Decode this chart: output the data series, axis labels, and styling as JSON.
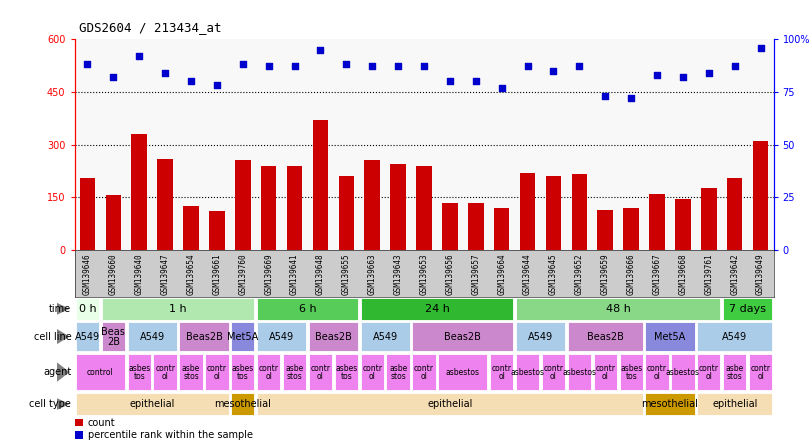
{
  "title": "GDS2604 / 213434_at",
  "samples": [
    "GSM139646",
    "GSM139660",
    "GSM139640",
    "GSM139647",
    "GSM139654",
    "GSM139661",
    "GSM139760",
    "GSM139669",
    "GSM139641",
    "GSM139648",
    "GSM139655",
    "GSM139663",
    "GSM139643",
    "GSM139653",
    "GSM139656",
    "GSM139657",
    "GSM139664",
    "GSM139644",
    "GSM139645",
    "GSM139652",
    "GSM139659",
    "GSM139666",
    "GSM139667",
    "GSM139668",
    "GSM139761",
    "GSM139642",
    "GSM139649"
  ],
  "counts": [
    205,
    155,
    330,
    260,
    125,
    110,
    255,
    240,
    240,
    370,
    210,
    255,
    245,
    240,
    135,
    135,
    120,
    220,
    210,
    215,
    115,
    120,
    160,
    145,
    175,
    205,
    310
  ],
  "percentiles": [
    88,
    82,
    92,
    84,
    80,
    78,
    88,
    87,
    87,
    95,
    88,
    87,
    87,
    87,
    80,
    80,
    77,
    87,
    85,
    87,
    73,
    72,
    83,
    82,
    84,
    87,
    96
  ],
  "bar_color": "#cc0000",
  "dot_color": "#0000cc",
  "time_segs": [
    {
      "text": "0 h",
      "start": 0,
      "end": 1,
      "color": "#e8ffe8"
    },
    {
      "text": "1 h",
      "start": 1,
      "end": 7,
      "color": "#b0e8b0"
    },
    {
      "text": "6 h",
      "start": 7,
      "end": 11,
      "color": "#58cc58"
    },
    {
      "text": "24 h",
      "start": 11,
      "end": 17,
      "color": "#30b830"
    },
    {
      "text": "48 h",
      "start": 17,
      "end": 25,
      "color": "#88d888"
    },
    {
      "text": "7 days",
      "start": 25,
      "end": 27,
      "color": "#40cc40"
    }
  ],
  "cellline_segs": [
    {
      "text": "A549",
      "start": 0,
      "end": 1,
      "color": "#aacce8"
    },
    {
      "text": "Beas\n2B",
      "start": 1,
      "end": 2,
      "color": "#cc88cc"
    },
    {
      "text": "A549",
      "start": 2,
      "end": 4,
      "color": "#aacce8"
    },
    {
      "text": "Beas2B",
      "start": 4,
      "end": 6,
      "color": "#cc88cc"
    },
    {
      "text": "Met5A",
      "start": 6,
      "end": 7,
      "color": "#8888dd"
    },
    {
      "text": "A549",
      "start": 7,
      "end": 9,
      "color": "#aacce8"
    },
    {
      "text": "Beas2B",
      "start": 9,
      "end": 11,
      "color": "#cc88cc"
    },
    {
      "text": "A549",
      "start": 11,
      "end": 13,
      "color": "#aacce8"
    },
    {
      "text": "Beas2B",
      "start": 13,
      "end": 17,
      "color": "#cc88cc"
    },
    {
      "text": "A549",
      "start": 17,
      "end": 19,
      "color": "#aacce8"
    },
    {
      "text": "Beas2B",
      "start": 19,
      "end": 22,
      "color": "#cc88cc"
    },
    {
      "text": "Met5A",
      "start": 22,
      "end": 24,
      "color": "#8888dd"
    },
    {
      "text": "A549",
      "start": 24,
      "end": 27,
      "color": "#aacce8"
    }
  ],
  "agent_segs": [
    {
      "text": "control",
      "start": 0,
      "end": 2,
      "color": "#ee82ee"
    },
    {
      "text": "asbes\ntos",
      "start": 2,
      "end": 3,
      "color": "#ee82ee"
    },
    {
      "text": "contr\nol",
      "start": 3,
      "end": 4,
      "color": "#ee82ee"
    },
    {
      "text": "asbe\nstos",
      "start": 4,
      "end": 5,
      "color": "#ee82ee"
    },
    {
      "text": "contr\nol",
      "start": 5,
      "end": 6,
      "color": "#ee82ee"
    },
    {
      "text": "asbes\ntos",
      "start": 6,
      "end": 7,
      "color": "#ee82ee"
    },
    {
      "text": "contr\nol",
      "start": 7,
      "end": 8,
      "color": "#ee82ee"
    },
    {
      "text": "asbe\nstos",
      "start": 8,
      "end": 9,
      "color": "#ee82ee"
    },
    {
      "text": "contr\nol",
      "start": 9,
      "end": 10,
      "color": "#ee82ee"
    },
    {
      "text": "asbes\ntos",
      "start": 10,
      "end": 11,
      "color": "#ee82ee"
    },
    {
      "text": "contr\nol",
      "start": 11,
      "end": 12,
      "color": "#ee82ee"
    },
    {
      "text": "asbe\nstos",
      "start": 12,
      "end": 13,
      "color": "#ee82ee"
    },
    {
      "text": "contr\nol",
      "start": 13,
      "end": 14,
      "color": "#ee82ee"
    },
    {
      "text": "asbestos",
      "start": 14,
      "end": 16,
      "color": "#ee82ee"
    },
    {
      "text": "contr\nol",
      "start": 16,
      "end": 17,
      "color": "#ee82ee"
    },
    {
      "text": "asbestos",
      "start": 17,
      "end": 18,
      "color": "#ee82ee"
    },
    {
      "text": "contr\nol",
      "start": 18,
      "end": 19,
      "color": "#ee82ee"
    },
    {
      "text": "asbestos",
      "start": 19,
      "end": 20,
      "color": "#ee82ee"
    },
    {
      "text": "contr\nol",
      "start": 20,
      "end": 21,
      "color": "#ee82ee"
    },
    {
      "text": "asbes\ntos",
      "start": 21,
      "end": 22,
      "color": "#ee82ee"
    },
    {
      "text": "contr\nol",
      "start": 22,
      "end": 23,
      "color": "#ee82ee"
    },
    {
      "text": "asbestos",
      "start": 23,
      "end": 24,
      "color": "#ee82ee"
    },
    {
      "text": "contr\nol",
      "start": 24,
      "end": 25,
      "color": "#ee82ee"
    },
    {
      "text": "asbe\nstos",
      "start": 25,
      "end": 26,
      "color": "#ee82ee"
    },
    {
      "text": "contr\nol",
      "start": 26,
      "end": 27,
      "color": "#ee82ee"
    }
  ],
  "celltype_segs": [
    {
      "text": "epithelial",
      "start": 0,
      "end": 6,
      "color": "#f5deb3"
    },
    {
      "text": "mesothelial",
      "start": 6,
      "end": 7,
      "color": "#cc9900"
    },
    {
      "text": "epithelial",
      "start": 7,
      "end": 22,
      "color": "#f5deb3"
    },
    {
      "text": "mesothelial",
      "start": 22,
      "end": 24,
      "color": "#cc9900"
    },
    {
      "text": "epithelial",
      "start": 24,
      "end": 27,
      "color": "#f5deb3"
    }
  ],
  "row_labels": [
    "time",
    "cell line",
    "agent",
    "cell type"
  ],
  "xtick_bg": "#cccccc",
  "plot_bg": "#f8f8f8"
}
